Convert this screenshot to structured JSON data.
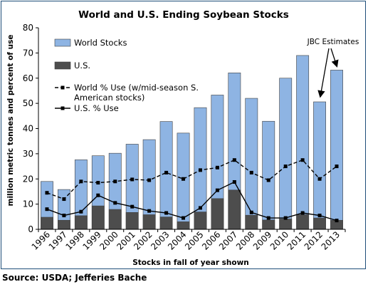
{
  "chart_data": {
    "type": "bar",
    "title": "World and U.S. Ending Soybean Stocks",
    "xlabel": "Stocks in fall of year shown",
    "ylabel": "million metric tonnes and percent of use",
    "ylim": [
      0,
      80
    ],
    "yticks": [
      "0",
      "10",
      "20",
      "30",
      "40",
      "50",
      "60",
      "70",
      "80"
    ],
    "categories": [
      "1996",
      "1997",
      "1998",
      "1999",
      "2000",
      "2001",
      "2002",
      "2003",
      "2004",
      "2005",
      "2006",
      "2007",
      "2008",
      "2009",
      "2010",
      "2011",
      "2012",
      "2013"
    ],
    "series": [
      {
        "name": "World Stocks",
        "kind": "bar",
        "color": "#8eb4e3",
        "values": [
          19,
          15.8,
          27.6,
          29.2,
          30.2,
          33.8,
          35.6,
          42.8,
          38.2,
          48.3,
          53.3,
          62.1,
          52,
          42.9,
          60,
          69,
          50.6,
          63.2
        ]
      },
      {
        "name": "U.S.",
        "kind": "bar",
        "color": "#4d4d4d",
        "values": [
          4.8,
          3.6,
          5.4,
          9.3,
          7.9,
          6.7,
          5.8,
          4.9,
          3,
          6.9,
          12.2,
          15.6,
          5.6,
          3.7,
          4.1,
          5.8,
          4.5,
          3.6
        ]
      },
      {
        "name": "World % Use (w/mid-season S. American stocks)",
        "kind": "line",
        "style": "dashed",
        "color": "#000000",
        "values": [
          14.5,
          12,
          19,
          18.5,
          19,
          19.8,
          19.5,
          22.5,
          20,
          23.5,
          24.5,
          27.5,
          22.5,
          19.5,
          25,
          27.5,
          20,
          25
        ]
      },
      {
        "name": "U.S. % Use",
        "kind": "line",
        "style": "solid",
        "color": "#000000",
        "values": [
          8,
          5.5,
          7,
          13.5,
          10.5,
          9,
          7.3,
          6.5,
          4.5,
          8.5,
          15.5,
          18.8,
          6.7,
          4.5,
          4.5,
          6.5,
          5.5,
          3.5
        ]
      }
    ],
    "legend": "top-left",
    "grid": false,
    "annotation": {
      "text": "JBC Estimates",
      "points_to": [
        "2012",
        "2013"
      ]
    }
  },
  "source": "Source: USDA; Jefferies Bache"
}
